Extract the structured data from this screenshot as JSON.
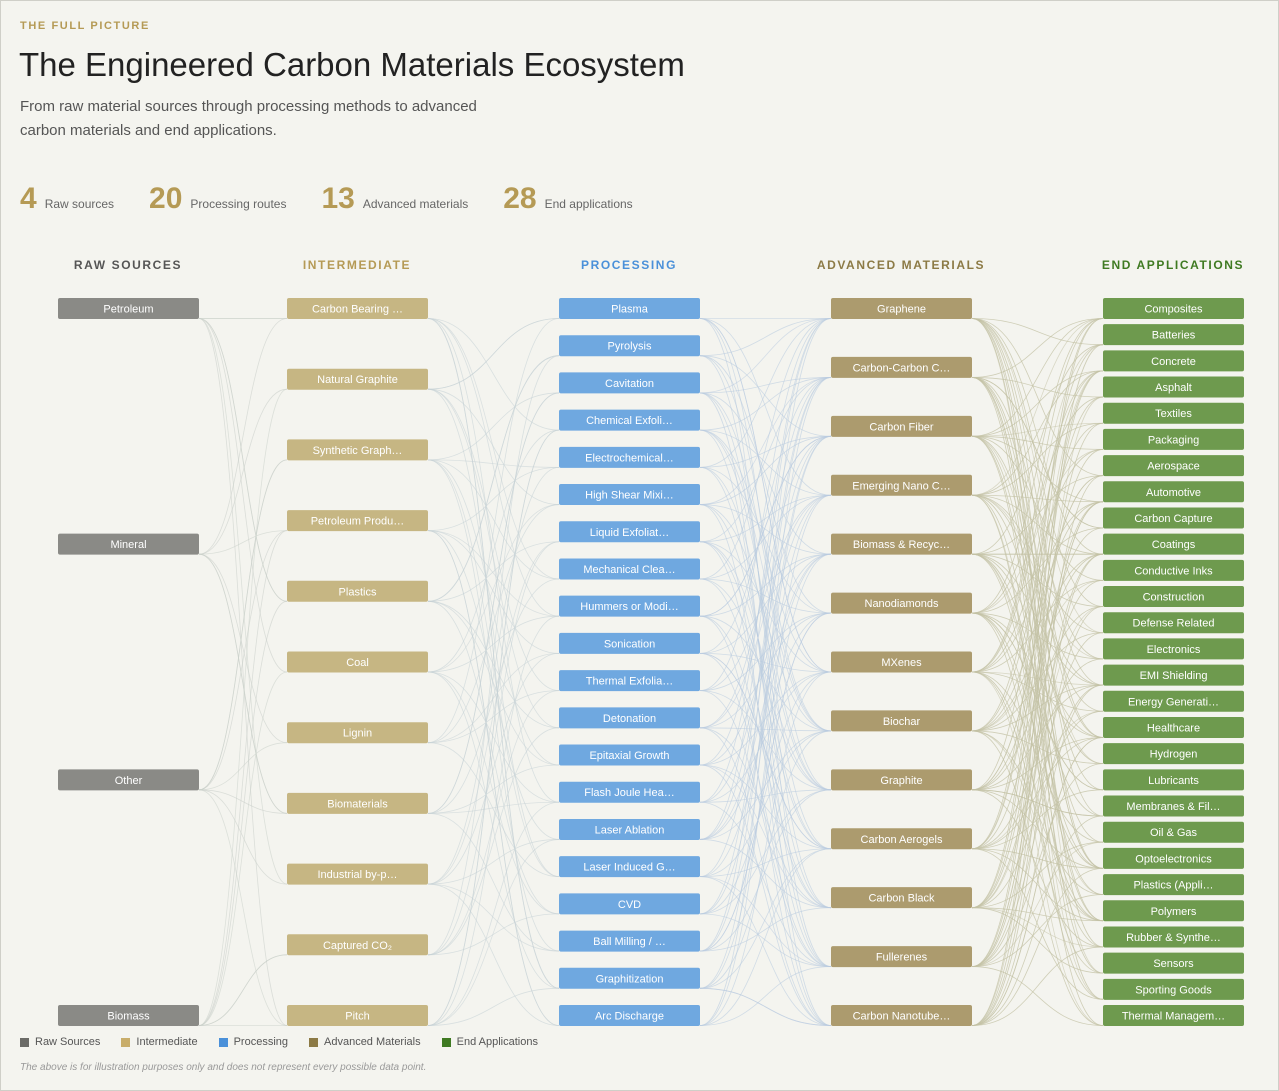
{
  "header": {
    "kicker": "THE FULL PICTURE",
    "title": "The Engineered Carbon Materials Ecosystem",
    "subtitle": "From raw material sources through processing methods to advanced carbon materials and end applications."
  },
  "stats": [
    {
      "value": "4",
      "label": "Raw sources"
    },
    {
      "value": "20",
      "label": "Processing routes"
    },
    {
      "value": "13",
      "label": "Advanced materials"
    },
    {
      "value": "28",
      "label": "End applications"
    }
  ],
  "columns": [
    {
      "key": "raw",
      "heading": "RAW SOURCES",
      "color": "#8a8a86",
      "heading_color": "#555555",
      "nodes": [
        "Petroleum",
        "Mineral",
        "Other",
        "Biomass"
      ]
    },
    {
      "key": "intermediate",
      "heading": "INTERMEDIATE",
      "color": "#c6b683",
      "heading_color": "#b59a55",
      "nodes": [
        "Carbon Bearing …",
        "Natural Graphite",
        "Synthetic Graph…",
        "Petroleum Produ…",
        "Plastics",
        "Coal",
        "Lignin",
        "Biomaterials",
        "Industrial by-p…",
        "Captured CO₂",
        "Pitch"
      ]
    },
    {
      "key": "processing",
      "heading": "PROCESSING",
      "color": "#6fa8e0",
      "heading_color": "#4a90d9",
      "nodes": [
        "Plasma",
        "Pyrolysis",
        "Cavitation",
        "Chemical Exfoli…",
        "Electrochemical…",
        "High Shear Mixi…",
        "Liquid Exfoliat…",
        "Mechanical Clea…",
        "Hummers or Modi…",
        "Sonication",
        "Thermal Exfolia…",
        "Detonation",
        "Epitaxial Growth",
        "Flash Joule Hea…",
        "Laser Ablation",
        "Laser Induced G…",
        "CVD",
        "Ball Milling / …",
        "Graphitization",
        "Arc Discharge"
      ]
    },
    {
      "key": "advanced",
      "heading": "ADVANCED MATERIALS",
      "color": "#ac9b6e",
      "heading_color": "#8c7a45",
      "nodes": [
        "Graphene",
        "Carbon-Carbon C…",
        "Carbon Fiber",
        "Emerging Nano C…",
        "Biomass & Recyc…",
        "Nanodiamonds",
        "MXenes",
        "Biochar",
        "Graphite",
        "Carbon Aerogels",
        "Carbon Black",
        "Fullerenes",
        "Carbon Nanotube…"
      ]
    },
    {
      "key": "end",
      "heading": "END APPLICATIONS",
      "color": "#6e9a4e",
      "heading_color": "#3f7a22",
      "nodes": [
        "Composites",
        "Batteries",
        "Concrete",
        "Asphalt",
        "Textiles",
        "Packaging",
        "Aerospace",
        "Automotive",
        "Carbon Capture",
        "Coatings",
        "Conductive Inks",
        "Construction",
        "Defense Related",
        "Electronics",
        "EMI Shielding",
        "Energy Generati…",
        "Healthcare",
        "Hydrogen",
        "Lubricants",
        "Membranes & Fil…",
        "Oil & Gas",
        "Optoelectronics",
        "Plastics (Appli…",
        "Polymers",
        "Rubber & Synthe…",
        "Sensors",
        "Sporting Goods",
        "Thermal Managem…"
      ]
    }
  ],
  "legend": [
    {
      "label": "Raw Sources",
      "color": "#6b6b67"
    },
    {
      "label": "Intermediate",
      "color": "#c8ad6a"
    },
    {
      "label": "Processing",
      "color": "#4a90d9"
    },
    {
      "label": "Advanced Materials",
      "color": "#8c7a45"
    },
    {
      "label": "End Applications",
      "color": "#3f7a22"
    }
  ],
  "note": "The above is for illustration purposes only and does not represent every possible data point."
}
